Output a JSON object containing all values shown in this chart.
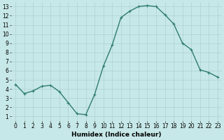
{
  "x": [
    0,
    1,
    2,
    3,
    4,
    5,
    6,
    7,
    8,
    9,
    10,
    11,
    12,
    13,
    14,
    15,
    16,
    17,
    18,
    19,
    20,
    21,
    22,
    23
  ],
  "y": [
    4.5,
    3.5,
    3.8,
    4.3,
    4.4,
    3.7,
    2.5,
    1.3,
    1.2,
    3.4,
    6.5,
    8.8,
    11.8,
    12.5,
    13.0,
    13.1,
    13.0,
    12.1,
    11.1,
    9.0,
    8.3,
    6.1,
    5.8,
    5.3
  ],
  "line_color": "#2e7d6e",
  "marker": "+",
  "marker_size": 3,
  "linewidth": 1.0,
  "xlabel": "Humidex (Indice chaleur)",
  "xlim": [
    -0.5,
    23.5
  ],
  "ylim": [
    0.5,
    13.5
  ],
  "xticks": [
    0,
    1,
    2,
    3,
    4,
    5,
    6,
    7,
    8,
    9,
    10,
    11,
    12,
    13,
    14,
    15,
    16,
    17,
    18,
    19,
    20,
    21,
    22,
    23
  ],
  "yticks": [
    1,
    2,
    3,
    4,
    5,
    6,
    7,
    8,
    9,
    10,
    11,
    12,
    13
  ],
  "bg_color": "#c7e8e8",
  "grid_color": "#b0d0d0",
  "xlabel_fontsize": 6.5,
  "tick_fontsize": 5.5
}
